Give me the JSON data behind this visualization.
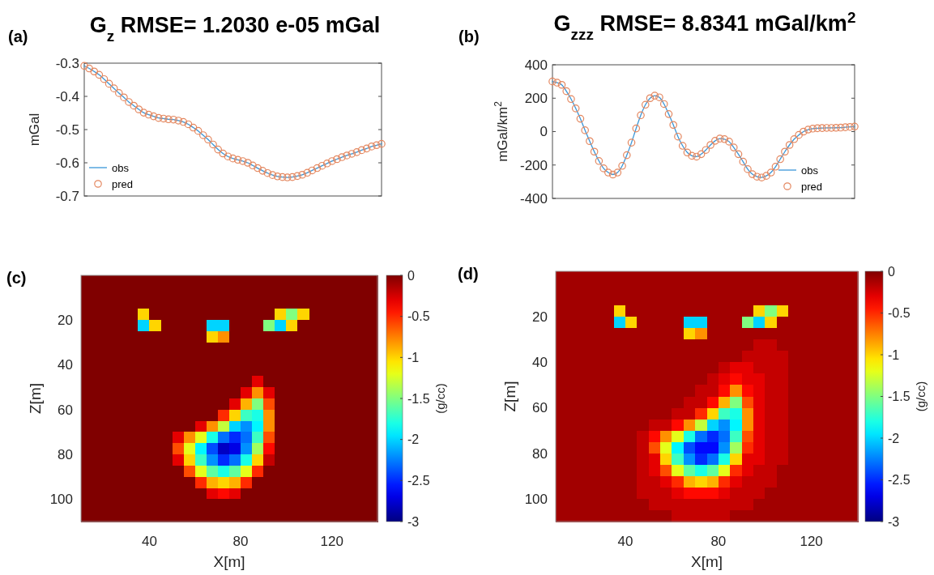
{
  "chart_data": [
    {
      "type": "line",
      "title": "G$_{z}$ RMSE= 1.2030 e-05 mGal",
      "ylabel": "mGal",
      "annotations": [
        "(a)"
      ],
      "categories": [
        null,
        null,
        null,
        null,
        null,
        null,
        null,
        null,
        null,
        null,
        null,
        null,
        null,
        null,
        null,
        null,
        null,
        null,
        null,
        null,
        null,
        null,
        null,
        null,
        null,
        null,
        null,
        null,
        null,
        null,
        null,
        null,
        null,
        null,
        null,
        null,
        null,
        null,
        null,
        null,
        null,
        null,
        null,
        null,
        null,
        null,
        null,
        null,
        null,
        null,
        null,
        null,
        null,
        null,
        null,
        null,
        null,
        null,
        null,
        null,
        null
      ],
      "ylim": [
        -0.7,
        -0.3
      ],
      "yticks": [
        -0.7,
        -0.6,
        -0.5,
        -0.4,
        -0.3
      ],
      "legend": "bottom left",
      "series": [
        {
          "name": "obs",
          "type": "line",
          "color": "#3a96d8",
          "values": [
            -0.308,
            -0.316,
            -0.325,
            -0.335,
            -0.348,
            -0.362,
            -0.376,
            -0.39,
            -0.403,
            -0.417,
            -0.428,
            -0.439,
            -0.449,
            -0.455,
            -0.46,
            -0.465,
            -0.467,
            -0.469,
            -0.47,
            -0.473,
            -0.477,
            -0.484,
            -0.494,
            -0.504,
            -0.517,
            -0.53,
            -0.545,
            -0.56,
            -0.572,
            -0.581,
            -0.587,
            -0.591,
            -0.595,
            -0.6,
            -0.608,
            -0.616,
            -0.624,
            -0.631,
            -0.637,
            -0.641,
            -0.643,
            -0.644,
            -0.643,
            -0.64,
            -0.636,
            -0.63,
            -0.623,
            -0.616,
            -0.609,
            -0.602,
            -0.595,
            -0.589,
            -0.583,
            -0.578,
            -0.573,
            -0.568,
            -0.562,
            -0.557,
            -0.551,
            -0.547,
            -0.543
          ]
        },
        {
          "name": "pred",
          "type": "scatter",
          "marker": "circle",
          "color": "#e4875f",
          "values": [
            -0.308,
            -0.316,
            -0.325,
            -0.335,
            -0.348,
            -0.362,
            -0.376,
            -0.39,
            -0.403,
            -0.417,
            -0.428,
            -0.439,
            -0.449,
            -0.455,
            -0.46,
            -0.465,
            -0.467,
            -0.469,
            -0.47,
            -0.473,
            -0.477,
            -0.484,
            -0.494,
            -0.504,
            -0.517,
            -0.53,
            -0.545,
            -0.56,
            -0.572,
            -0.581,
            -0.587,
            -0.591,
            -0.595,
            -0.6,
            -0.608,
            -0.616,
            -0.624,
            -0.631,
            -0.637,
            -0.641,
            -0.643,
            -0.644,
            -0.643,
            -0.64,
            -0.636,
            -0.63,
            -0.623,
            -0.616,
            -0.609,
            -0.602,
            -0.595,
            -0.589,
            -0.583,
            -0.578,
            -0.573,
            -0.568,
            -0.562,
            -0.557,
            -0.551,
            -0.547,
            -0.543
          ]
        }
      ]
    },
    {
      "type": "line",
      "title": "G$_{zzz}$ RMSE= 8.8341 mGal/km$^{2}$",
      "ylabel": "mGal/km$^{2}$",
      "annotations": [
        "(b)"
      ],
      "categories": [
        null,
        null,
        null,
        null,
        null,
        null,
        null,
        null,
        null,
        null,
        null,
        null,
        null,
        null,
        null,
        null,
        null,
        null,
        null,
        null,
        null,
        null,
        null,
        null,
        null,
        null,
        null,
        null,
        null,
        null,
        null,
        null,
        null,
        null,
        null,
        null,
        null,
        null,
        null,
        null,
        null,
        null,
        null,
        null,
        null,
        null,
        null,
        null,
        null,
        null,
        null,
        null,
        null,
        null,
        null,
        null,
        null,
        null,
        null,
        null,
        null,
        null,
        null,
        null,
        null,
        null
      ],
      "ylim": [
        -400,
        400
      ],
      "yticks": [
        -400,
        -200,
        0,
        200,
        400
      ],
      "legend": "bottom right",
      "series": [
        {
          "name": "obs",
          "type": "line",
          "color": "#3a96d8",
          "values": [
            300,
            293,
            280,
            242,
            195,
            139,
            77,
            8,
            -57,
            -120,
            -176,
            -220,
            -245,
            -257,
            -245,
            -205,
            -141,
            -66,
            19,
            98,
            161,
            200,
            215,
            205,
            165,
            105,
            40,
            -30,
            -85,
            -125,
            -145,
            -150,
            -135,
            -110,
            -80,
            -55,
            -42,
            -45,
            -60,
            -95,
            -135,
            -180,
            -225,
            -255,
            -270,
            -275,
            -265,
            -245,
            -210,
            -165,
            -120,
            -80,
            -45,
            -20,
            0,
            12,
            18,
            20,
            21,
            22,
            22,
            23,
            24,
            26,
            28,
            30
          ]
        },
        {
          "name": "pred",
          "type": "scatter",
          "marker": "circle",
          "color": "#e4875f",
          "values": [
            300,
            293,
            280,
            242,
            195,
            139,
            77,
            8,
            -57,
            -120,
            -176,
            -220,
            -245,
            -257,
            -245,
            -205,
            -141,
            -66,
            19,
            98,
            161,
            200,
            215,
            205,
            165,
            105,
            40,
            -30,
            -85,
            -125,
            -145,
            -150,
            -135,
            -110,
            -80,
            -55,
            -42,
            -45,
            -60,
            -95,
            -135,
            -180,
            -225,
            -255,
            -270,
            -275,
            -265,
            -245,
            -210,
            -165,
            -120,
            -80,
            -45,
            -20,
            0,
            12,
            18,
            20,
            21,
            22,
            22,
            23,
            24,
            26,
            28,
            30
          ]
        }
      ]
    },
    {
      "type": "heatmap",
      "xlabel": "X[m]",
      "ylabel": "Z[m]",
      "clabel": "(g/cc)",
      "annotations": [
        "(c)"
      ],
      "x": [
        12.5,
        17.5,
        22.5,
        27.5,
        32.5,
        37.5,
        42.5,
        47.5,
        52.5,
        57.5,
        62.5,
        67.5,
        72.5,
        77.5,
        82.5,
        87.5,
        92.5,
        97.5,
        102.5,
        107.5,
        112.5,
        117.5,
        122.5,
        127.5,
        132.5,
        137.5
      ],
      "y": [
        2.5,
        7.5,
        12.5,
        17.5,
        22.5,
        27.5,
        32.5,
        37.5,
        42.5,
        47.5,
        52.5,
        57.5,
        62.5,
        67.5,
        72.5,
        77.5,
        82.5,
        87.5,
        92.5,
        97.5,
        102.5,
        107.5
      ],
      "xlim": [
        10,
        140
      ],
      "ylim": [
        110,
        0
      ],
      "xticks": [
        40,
        80,
        120
      ],
      "yticks": [
        20,
        40,
        60,
        80,
        100
      ],
      "clim": [
        -3,
        0
      ],
      "cticks": [
        -3,
        -2.5,
        -2,
        -1.5,
        -1,
        -0.5,
        0
      ],
      "cells": [
        [
          0,
          0,
          0,
          0,
          0,
          0,
          0,
          0,
          0,
          0,
          0,
          0,
          0,
          0,
          0,
          0,
          0,
          0,
          0,
          0,
          0,
          0,
          0,
          0,
          0,
          0
        ],
        [
          0,
          0,
          0,
          0,
          0,
          0,
          0,
          0,
          0,
          0,
          0,
          0,
          0,
          0,
          0,
          0,
          0,
          0,
          0,
          0,
          0,
          0,
          0,
          0,
          0,
          0
        ],
        [
          0,
          0,
          0,
          0,
          0,
          0,
          0,
          0,
          0,
          0,
          0,
          0,
          0,
          0,
          0,
          0,
          0,
          0,
          0,
          0,
          0,
          0,
          0,
          0,
          0,
          0
        ],
        [
          0,
          0,
          0,
          0,
          0,
          -1,
          0,
          0,
          0,
          0,
          0,
          0,
          0,
          0,
          0,
          0,
          0,
          -1,
          -1.5,
          -1,
          0,
          0,
          0,
          0,
          0,
          0
        ],
        [
          0,
          0,
          0,
          0,
          0,
          -2,
          -1,
          0,
          0,
          0,
          0,
          -2,
          -2,
          0,
          0,
          0,
          -1.5,
          -2,
          -1,
          0,
          0,
          0,
          0,
          0,
          0,
          0
        ],
        [
          0,
          0,
          0,
          0,
          0,
          0,
          0,
          0,
          0,
          0,
          0,
          -1,
          -0.8,
          0,
          0,
          0,
          0,
          0,
          0,
          0,
          0,
          0,
          0,
          0,
          0,
          0
        ],
        [
          0,
          0,
          0,
          0,
          0,
          0,
          0,
          0,
          0,
          0,
          0,
          0,
          0,
          0,
          0,
          0,
          0,
          0,
          0,
          0,
          0,
          0,
          0,
          0,
          0,
          0
        ],
        [
          0,
          0,
          0,
          0,
          0,
          0,
          0,
          0,
          0,
          0,
          0,
          0,
          0,
          0,
          0,
          0,
          0,
          0,
          0,
          0,
          0,
          0,
          0,
          0,
          0,
          0
        ],
        [
          0,
          0,
          0,
          0,
          0,
          0,
          0,
          0,
          0,
          0,
          0,
          0,
          0,
          0,
          0,
          0,
          0,
          0,
          0,
          0,
          0,
          0,
          0,
          0,
          0,
          0
        ],
        [
          0,
          0,
          0,
          0,
          0,
          0,
          0,
          0,
          0,
          0,
          0,
          0,
          0,
          0,
          0,
          -0.3,
          0,
          0,
          0,
          0,
          0,
          0,
          0,
          0,
          0,
          0
        ],
        [
          0,
          0,
          0,
          0,
          0,
          0,
          0,
          0,
          0,
          0,
          0,
          0,
          0,
          0,
          -0.3,
          -0.8,
          -0.3,
          0,
          0,
          0,
          0,
          0,
          0,
          0,
          0,
          0
        ],
        [
          0,
          0,
          0,
          0,
          0,
          0,
          0,
          0,
          0,
          0,
          0,
          0,
          0,
          -0.3,
          -0.9,
          -1.5,
          -0.6,
          0,
          0,
          0,
          0,
          0,
          0,
          0,
          0,
          0
        ],
        [
          0,
          0,
          0,
          0,
          0,
          0,
          0,
          0,
          0,
          0,
          0,
          0,
          -0.5,
          -1,
          -1.7,
          -1.8,
          -0.8,
          0,
          0,
          0,
          0,
          0,
          0,
          0,
          0,
          0
        ],
        [
          0,
          0,
          0,
          0,
          0,
          0,
          0,
          0,
          0,
          0,
          -0.3,
          -0.8,
          -1.3,
          -2,
          -2.2,
          -1.9,
          -0.8,
          0,
          0,
          0,
          0,
          0,
          0,
          0,
          0,
          0
        ],
        [
          0,
          0,
          0,
          0,
          0,
          0,
          0,
          0,
          -0.3,
          -0.8,
          -1.2,
          -1.8,
          -2.3,
          -2.5,
          -2.3,
          -1.7,
          -0.6,
          0,
          0,
          0,
          0,
          0,
          0,
          0,
          0,
          0
        ],
        [
          0,
          0,
          0,
          0,
          0,
          0,
          0,
          0,
          -0.6,
          -1.2,
          -1.9,
          -2.4,
          -2.8,
          -2.7,
          -2.2,
          -1.4,
          -0.4,
          0,
          0,
          0,
          0,
          0,
          0,
          0,
          0,
          0
        ],
        [
          0,
          0,
          0,
          0,
          0,
          0,
          0,
          0,
          -0.3,
          -1,
          -1.7,
          -2.2,
          -2.5,
          -2.3,
          -1.8,
          -1,
          -0.2,
          0,
          0,
          0,
          0,
          0,
          0,
          0,
          0,
          0
        ],
        [
          0,
          0,
          0,
          0,
          0,
          0,
          0,
          0,
          0,
          -0.6,
          -1.2,
          -1.6,
          -1.8,
          -1.6,
          -1.2,
          -0.5,
          0,
          0,
          0,
          0,
          0,
          0,
          0,
          0,
          0,
          0
        ],
        [
          0,
          0,
          0,
          0,
          0,
          0,
          0,
          0,
          0,
          0,
          -0.5,
          -0.9,
          -1,
          -0.9,
          -0.5,
          0,
          0,
          0,
          0,
          0,
          0,
          0,
          0,
          0,
          0,
          0
        ],
        [
          0,
          0,
          0,
          0,
          0,
          0,
          0,
          0,
          0,
          0,
          0,
          -0.3,
          -0.4,
          -0.3,
          0,
          0,
          0,
          0,
          0,
          0,
          0,
          0,
          0,
          0,
          0,
          0
        ],
        [
          0,
          0,
          0,
          0,
          0,
          0,
          0,
          0,
          0,
          0,
          0,
          0,
          0,
          0,
          0,
          0,
          0,
          0,
          0,
          0,
          0,
          0,
          0,
          0,
          0,
          0
        ],
        [
          0,
          0,
          0,
          0,
          0,
          0,
          0,
          0,
          0,
          0,
          0,
          0,
          0,
          0,
          0,
          0,
          0,
          0,
          0,
          0,
          0,
          0,
          0,
          0,
          0,
          0
        ]
      ]
    },
    {
      "type": "heatmap",
      "xlabel": "X[m]",
      "ylabel": "Z[m]",
      "clabel": "(g/cc)",
      "annotations": [
        "(d)"
      ],
      "x": [
        12.5,
        17.5,
        22.5,
        27.5,
        32.5,
        37.5,
        42.5,
        47.5,
        52.5,
        57.5,
        62.5,
        67.5,
        72.5,
        77.5,
        82.5,
        87.5,
        92.5,
        97.5,
        102.5,
        107.5,
        112.5,
        117.5,
        122.5,
        127.5,
        132.5,
        137.5
      ],
      "y": [
        2.5,
        7.5,
        12.5,
        17.5,
        22.5,
        27.5,
        32.5,
        37.5,
        42.5,
        47.5,
        52.5,
        57.5,
        62.5,
        67.5,
        72.5,
        77.5,
        82.5,
        87.5,
        92.5,
        97.5,
        102.5,
        107.5
      ],
      "xlim": [
        10,
        140
      ],
      "ylim": [
        110,
        0
      ],
      "xticks": [
        40,
        80,
        120
      ],
      "yticks": [
        20,
        40,
        60,
        80,
        100
      ],
      "clim": [
        -3,
        0
      ],
      "cticks": [
        -3,
        -2.5,
        -2,
        -1.5,
        -1,
        -0.5,
        0
      ],
      "cells": [
        [
          -0.1,
          -0.1,
          -0.1,
          -0.1,
          -0.1,
          -0.1,
          -0.1,
          -0.1,
          -0.1,
          -0.1,
          -0.1,
          -0.1,
          -0.1,
          -0.1,
          -0.1,
          -0.1,
          -0.1,
          -0.1,
          -0.1,
          -0.1,
          -0.1,
          -0.1,
          -0.1,
          -0.1,
          -0.1,
          -0.1
        ],
        [
          -0.1,
          -0.1,
          -0.1,
          -0.1,
          -0.1,
          -0.1,
          -0.1,
          -0.1,
          -0.1,
          -0.1,
          -0.1,
          -0.1,
          -0.1,
          -0.1,
          -0.1,
          -0.1,
          -0.1,
          -0.1,
          -0.1,
          -0.1,
          -0.1,
          -0.1,
          -0.1,
          -0.1,
          -0.1,
          -0.1
        ],
        [
          -0.1,
          -0.1,
          -0.1,
          -0.1,
          -0.1,
          -0.1,
          -0.1,
          -0.1,
          -0.1,
          -0.1,
          -0.1,
          -0.1,
          -0.1,
          -0.1,
          -0.1,
          -0.1,
          -0.1,
          -0.1,
          -0.1,
          -0.1,
          -0.1,
          -0.1,
          -0.1,
          -0.1,
          -0.1,
          -0.1
        ],
        [
          -0.1,
          -0.1,
          -0.1,
          -0.1,
          -0.1,
          -1,
          -0.1,
          -0.1,
          -0.1,
          -0.1,
          -0.1,
          -0.1,
          -0.1,
          -0.1,
          -0.1,
          -0.1,
          -0.1,
          -1,
          -1.5,
          -1,
          -0.1,
          -0.1,
          -0.1,
          -0.1,
          -0.1,
          -0.1
        ],
        [
          -0.1,
          -0.1,
          -0.1,
          -0.1,
          -0.1,
          -2,
          -1,
          -0.1,
          -0.1,
          -0.1,
          -0.1,
          -2,
          -2,
          -0.1,
          -0.1,
          -0.1,
          -1.5,
          -2,
          -1,
          -0.1,
          -0.1,
          -0.1,
          -0.1,
          -0.1,
          -0.1,
          -0.1
        ],
        [
          -0.1,
          -0.1,
          -0.1,
          -0.1,
          -0.1,
          -0.1,
          -0.1,
          -0.1,
          -0.1,
          -0.1,
          -0.1,
          -1,
          -0.8,
          -0.1,
          -0.1,
          -0.1,
          -0.1,
          -0.1,
          -0.1,
          -0.1,
          -0.1,
          -0.1,
          -0.1,
          -0.1,
          -0.1,
          -0.1
        ],
        [
          -0.1,
          -0.1,
          -0.1,
          -0.1,
          -0.1,
          -0.1,
          -0.1,
          -0.1,
          -0.1,
          -0.1,
          -0.1,
          -0.1,
          -0.1,
          -0.1,
          -0.1,
          -0.1,
          -0.1,
          -0.2,
          -0.2,
          -0.1,
          -0.1,
          -0.1,
          -0.1,
          -0.1,
          -0.1,
          -0.1
        ],
        [
          -0.1,
          -0.1,
          -0.1,
          -0.1,
          -0.1,
          -0.1,
          -0.1,
          -0.1,
          -0.1,
          -0.1,
          -0.1,
          -0.1,
          -0.1,
          -0.1,
          -0.1,
          -0.1,
          -0.2,
          -0.2,
          -0.2,
          -0.2,
          -0.1,
          -0.1,
          -0.1,
          -0.1,
          -0.1,
          -0.1
        ],
        [
          -0.1,
          -0.1,
          -0.1,
          -0.1,
          -0.1,
          -0.1,
          -0.1,
          -0.1,
          -0.1,
          -0.1,
          -0.1,
          -0.1,
          -0.1,
          -0.1,
          -0.2,
          -0.3,
          -0.3,
          -0.2,
          -0.2,
          -0.2,
          -0.1,
          -0.1,
          -0.1,
          -0.1,
          -0.1,
          -0.1
        ],
        [
          -0.1,
          -0.1,
          -0.1,
          -0.1,
          -0.1,
          -0.1,
          -0.1,
          -0.1,
          -0.1,
          -0.1,
          -0.1,
          -0.1,
          -0.1,
          -0.2,
          -0.3,
          -0.4,
          -0.3,
          -0.3,
          -0.2,
          -0.2,
          -0.1,
          -0.1,
          -0.1,
          -0.1,
          -0.1,
          -0.1
        ],
        [
          -0.1,
          -0.1,
          -0.1,
          -0.1,
          -0.1,
          -0.1,
          -0.1,
          -0.1,
          -0.1,
          -0.1,
          -0.1,
          -0.1,
          -0.2,
          -0.2,
          -0.4,
          -0.8,
          -0.4,
          -0.3,
          -0.2,
          -0.2,
          -0.1,
          -0.1,
          -0.1,
          -0.1,
          -0.1,
          -0.1
        ],
        [
          -0.1,
          -0.1,
          -0.1,
          -0.1,
          -0.1,
          -0.1,
          -0.1,
          -0.1,
          -0.1,
          -0.1,
          -0.1,
          -0.2,
          -0.2,
          -0.4,
          -0.9,
          -1.5,
          -0.6,
          -0.3,
          -0.2,
          -0.2,
          -0.1,
          -0.1,
          -0.1,
          -0.1,
          -0.1,
          -0.1
        ],
        [
          -0.1,
          -0.1,
          -0.1,
          -0.1,
          -0.1,
          -0.1,
          -0.1,
          -0.1,
          -0.1,
          -0.1,
          -0.2,
          -0.2,
          -0.5,
          -1,
          -1.7,
          -1.8,
          -0.8,
          -0.3,
          -0.2,
          -0.2,
          -0.1,
          -0.1,
          -0.1,
          -0.1,
          -0.1,
          -0.1
        ],
        [
          -0.1,
          -0.1,
          -0.1,
          -0.1,
          -0.1,
          -0.1,
          -0.1,
          -0.1,
          -0.2,
          -0.2,
          -0.4,
          -0.8,
          -1.3,
          -2,
          -2.2,
          -1.9,
          -0.8,
          -0.3,
          -0.2,
          -0.2,
          -0.1,
          -0.1,
          -0.1,
          -0.1,
          -0.1,
          -0.1
        ],
        [
          -0.1,
          -0.1,
          -0.1,
          -0.1,
          -0.1,
          -0.1,
          -0.1,
          -0.2,
          -0.4,
          -0.8,
          -1.2,
          -1.8,
          -2.3,
          -2.5,
          -2.3,
          -1.7,
          -0.6,
          -0.3,
          -0.2,
          -0.2,
          -0.1,
          -0.1,
          -0.1,
          -0.1,
          -0.1,
          -0.1
        ],
        [
          -0.1,
          -0.1,
          -0.1,
          -0.1,
          -0.1,
          -0.1,
          -0.1,
          -0.2,
          -0.6,
          -1.2,
          -1.9,
          -2.4,
          -2.6,
          -2.6,
          -2.2,
          -1.4,
          -0.5,
          -0.3,
          -0.2,
          -0.2,
          -0.1,
          -0.1,
          -0.1,
          -0.1,
          -0.1,
          -0.1
        ],
        [
          -0.1,
          -0.1,
          -0.1,
          -0.1,
          -0.1,
          -0.1,
          -0.1,
          -0.2,
          -0.3,
          -1,
          -1.7,
          -2.2,
          -2.5,
          -2.3,
          -1.8,
          -1,
          -0.3,
          -0.3,
          -0.2,
          -0.2,
          -0.1,
          -0.1,
          -0.1,
          -0.1,
          -0.1,
          -0.1
        ],
        [
          -0.1,
          -0.1,
          -0.1,
          -0.1,
          -0.1,
          -0.1,
          -0.1,
          -0.2,
          -0.3,
          -0.6,
          -1.2,
          -1.6,
          -1.8,
          -1.6,
          -1.2,
          -0.5,
          -0.3,
          -0.2,
          -0.2,
          -0.1,
          -0.1,
          -0.1,
          -0.1,
          -0.1,
          -0.1,
          -0.1
        ],
        [
          -0.1,
          -0.1,
          -0.1,
          -0.1,
          -0.1,
          -0.1,
          -0.1,
          -0.2,
          -0.2,
          -0.3,
          -0.5,
          -0.9,
          -1,
          -0.9,
          -0.5,
          -0.3,
          -0.2,
          -0.2,
          -0.2,
          -0.1,
          -0.1,
          -0.1,
          -0.1,
          -0.1,
          -0.1,
          -0.1
        ],
        [
          -0.1,
          -0.1,
          -0.1,
          -0.1,
          -0.1,
          -0.1,
          -0.1,
          -0.2,
          -0.2,
          -0.2,
          -0.3,
          -0.4,
          -0.4,
          -0.4,
          -0.3,
          -0.2,
          -0.2,
          -0.2,
          -0.1,
          -0.1,
          -0.1,
          -0.1,
          -0.1,
          -0.1,
          -0.1,
          -0.1
        ],
        [
          -0.1,
          -0.1,
          -0.1,
          -0.1,
          -0.1,
          -0.1,
          -0.1,
          -0.1,
          -0.2,
          -0.2,
          -0.2,
          -0.2,
          -0.2,
          -0.2,
          -0.2,
          -0.2,
          -0.2,
          -0.1,
          -0.1,
          -0.1,
          -0.1,
          -0.1,
          -0.1,
          -0.1,
          -0.1,
          -0.1
        ],
        [
          -0.1,
          -0.1,
          -0.1,
          -0.1,
          -0.1,
          -0.1,
          -0.1,
          -0.1,
          -0.1,
          -0.1,
          -0.2,
          -0.2,
          -0.2,
          -0.2,
          -0.2,
          -0.1,
          -0.1,
          -0.1,
          -0.1,
          -0.1,
          -0.1,
          -0.1,
          -0.1,
          -0.1,
          -0.1,
          -0.1
        ]
      ]
    }
  ]
}
